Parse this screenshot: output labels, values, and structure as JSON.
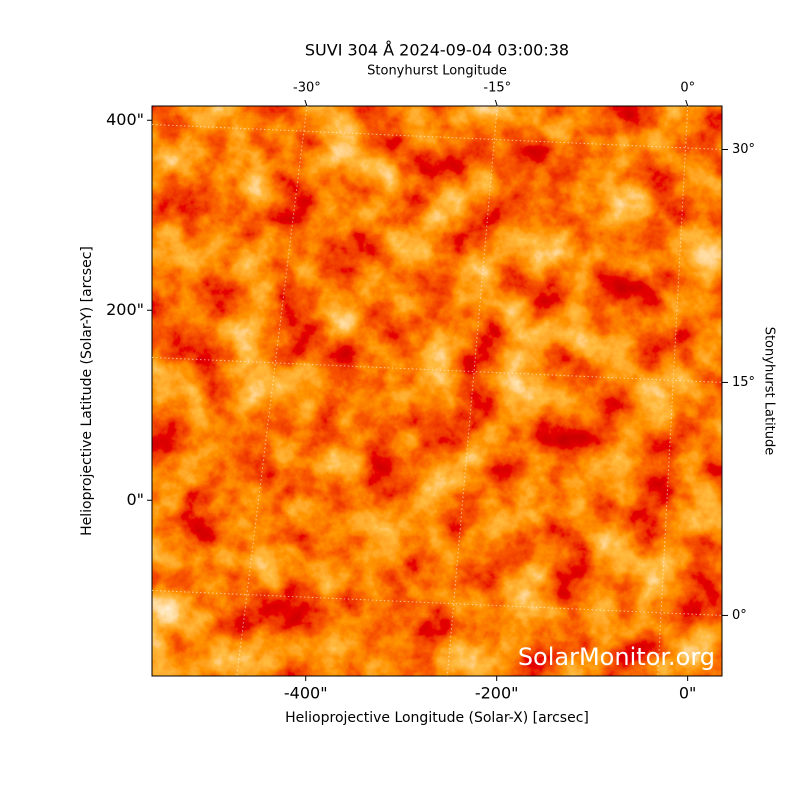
{
  "chart_data": {
    "type": "image",
    "title": "SUVI 304 Å 2024-09-04 03:00:38",
    "xlabel": "Helioprojective Longitude (Solar-X) [arcsec]",
    "ylabel": "Helioprojective Latitude (Solar-Y) [arcsec]",
    "x2label": "Stonyhurst Longitude",
    "y2label": "Stonyhurst Latitude",
    "watermark": "SolarMonitor.org",
    "xlim": [
      -561,
      36
    ],
    "ylim": [
      -185,
      415
    ],
    "xticks": [
      {
        "value": -400,
        "label": "-400\""
      },
      {
        "value": -200,
        "label": "-200\""
      },
      {
        "value": 0,
        "label": "0\""
      }
    ],
    "yticks": [
      {
        "value": 0,
        "label": "0\""
      },
      {
        "value": 200,
        "label": "200\""
      },
      {
        "value": 400,
        "label": "400\""
      }
    ],
    "x2lim": [
      -42.2,
      2.7
    ],
    "x2ticks": [
      {
        "value": -30,
        "label": "-30°"
      },
      {
        "value": -15,
        "label": "-15°"
      },
      {
        "value": 0,
        "label": "0°"
      }
    ],
    "y2lim": [
      -3.9,
      32.8
    ],
    "y2ticks": [
      {
        "value": 0,
        "label": "0°"
      },
      {
        "value": 15,
        "label": "15°"
      },
      {
        "value": 30,
        "label": "30°"
      }
    ],
    "grid": true
  }
}
